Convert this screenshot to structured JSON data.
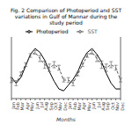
{
  "chart_data": {
    "type": "line",
    "title": "Fig. 2 Comparison of Photoperiod and SST variations in Gulf of Mannar during the study period",
    "x_label": "Months",
    "categories": [
      "Jan",
      "Feb",
      "Mar",
      "Apr",
      "May",
      "Jun",
      "Jul",
      "Aug",
      "Sep",
      "Oct",
      "Nov",
      "Dec",
      "Jan",
      "Feb",
      "Mar",
      "Apr",
      "May",
      "Jun",
      "Jul",
      "Aug",
      "Sep",
      "Oct",
      "Nov",
      "Dec"
    ],
    "series": [
      {
        "name": "Photoperiod",
        "color": "#000000",
        "line_style": "solid",
        "values": [
          11.9,
          11.6,
          11.9,
          12.5,
          13.1,
          13.4,
          13.2,
          12.8,
          12.2,
          11.7,
          11.3,
          11.2,
          11.5,
          11.8,
          12.2,
          12.8,
          13.2,
          13.4,
          13.1,
          12.7,
          12.1,
          11.6,
          11.3,
          11.3
        ]
      },
      {
        "name": "SST",
        "color": "#555555",
        "line_style": "dashed",
        "axis": "y2",
        "values": [
          27.0,
          26.5,
          28.0,
          29.5,
          31.0,
          31.5,
          30.5,
          29.5,
          29.0,
          29.5,
          29.0,
          27.0,
          27.0,
          26.5,
          28.0,
          29.5,
          31.0,
          31.5,
          30.5,
          29.5,
          29.0,
          29.5,
          29.0,
          27.0
        ],
        "errors": [
          0.4,
          0.4,
          0.3,
          0.3,
          0.3,
          0.3,
          0.5,
          0.6,
          0.6,
          0.5,
          0.4,
          0.3,
          0.4,
          0.4,
          0.3,
          0.3,
          0.3,
          0.3,
          0.5,
          0.6,
          0.6,
          0.5,
          0.4,
          0.3
        ]
      }
    ],
    "ylim": [
      10.8,
      14.0
    ],
    "y2lim": [
      24.0,
      34.0
    ],
    "tick_labels": "x",
    "legend": "top",
    "grid": false
  }
}
